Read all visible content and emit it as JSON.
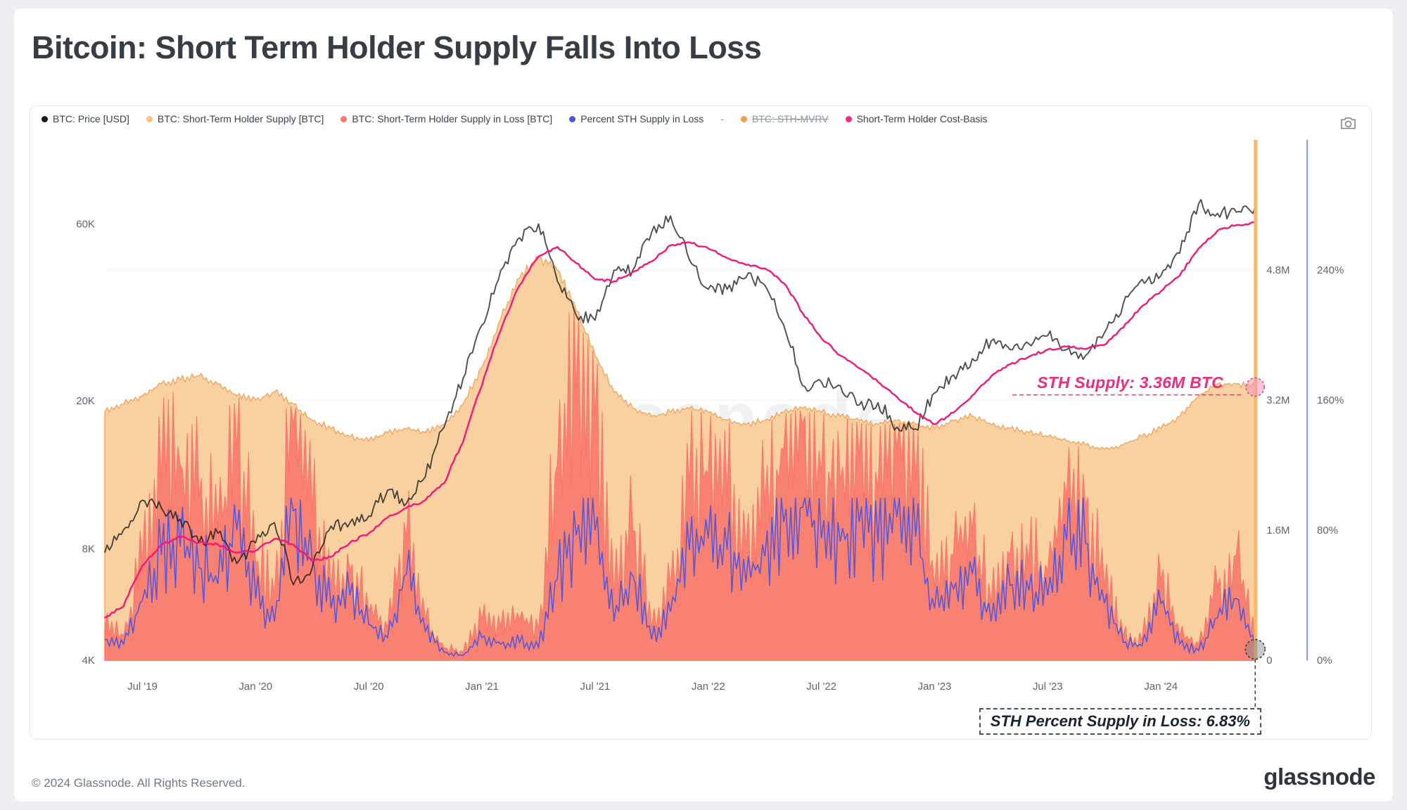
{
  "header": {
    "title": "Bitcoin: Short Term Holder Supply Falls Into Loss"
  },
  "legend": {
    "items": [
      {
        "label": "BTC: Price [USD]",
        "color": "#17191c"
      },
      {
        "label": "BTC: Short-Term Holder Supply [BTC]",
        "color": "#f8c382"
      },
      {
        "label": "BTC: Short-Term Holder Supply in Loss [BTC]",
        "color": "#f8766c"
      },
      {
        "label": "Percent STH Supply in Loss",
        "color": "#4a55e1"
      },
      {
        "label": "-",
        "color": null,
        "separator": true
      },
      {
        "label": "BTC: STH-MVRV",
        "color": "#f0a23c",
        "disabled": true
      },
      {
        "label": "Short-Term Holder Cost-Basis",
        "color": "#ee2d7f"
      }
    ]
  },
  "watermark": {
    "text": "glassnode"
  },
  "footer": {
    "copyright": "© 2024 Glassnode. All Rights Reserved.",
    "brand": "glassnode"
  },
  "chart_data": {
    "type": "area",
    "title": "Bitcoin: Short Term Holder Supply Falls Into Loss",
    "x_start": "2019-05",
    "x_end": "2024-06",
    "n_points": 62,
    "x_ticks": [
      {
        "i": 2,
        "label": "Jul '19"
      },
      {
        "i": 8,
        "label": "Jan '20"
      },
      {
        "i": 14,
        "label": "Jul '20"
      },
      {
        "i": 20,
        "label": "Jan '21"
      },
      {
        "i": 26,
        "label": "Jul '21"
      },
      {
        "i": 32,
        "label": "Jan '22"
      },
      {
        "i": 38,
        "label": "Jul '22"
      },
      {
        "i": 44,
        "label": "Jan '23"
      },
      {
        "i": 50,
        "label": "Jul '23"
      },
      {
        "i": 56,
        "label": "Jan '24"
      }
    ],
    "axes": {
      "price": {
        "side": "left",
        "scale": "log",
        "min": 4000,
        "max": 101000,
        "ticks": [
          {
            "v": 4000,
            "label": "4K"
          },
          {
            "v": 8000,
            "label": "8K"
          },
          {
            "v": 20000,
            "label": "20K"
          },
          {
            "v": 60000,
            "label": "60K"
          }
        ]
      },
      "supply": {
        "side": "right",
        "scale": "linear",
        "min": 0,
        "max": 6.4,
        "unit": "million BTC",
        "ticks": [
          {
            "v": 0,
            "label": "0"
          },
          {
            "v": 1.6,
            "label": "1.6M"
          },
          {
            "v": 3.2,
            "label": "3.2M"
          },
          {
            "v": 4.8,
            "label": "4.8M"
          }
        ]
      },
      "percent": {
        "side": "right-outer",
        "scale": "linear",
        "min": 0,
        "max": 320,
        "axis_line_color": "#6672e8",
        "ticks": [
          {
            "v": 0,
            "label": "0%"
          },
          {
            "v": 80,
            "label": "80%"
          },
          {
            "v": 160,
            "label": "160%"
          },
          {
            "v": 240,
            "label": "240%"
          }
        ]
      }
    },
    "grid": "horizontal",
    "series": [
      {
        "name": "BTC: Price [USD]",
        "axis": "price",
        "type": "line",
        "color": "#1a1c1f",
        "spikiness": 0.04,
        "values": [
          7800,
          9000,
          10800,
          10300,
          9600,
          8300,
          8800,
          7300,
          8300,
          9400,
          6400,
          7100,
          9200,
          9400,
          9800,
          11500,
          10600,
          12500,
          17000,
          23000,
          32000,
          45000,
          55000,
          60000,
          42000,
          34000,
          33000,
          45000,
          45000,
          57000,
          63000,
          48000,
          40000,
          40000,
          43000,
          41000,
          32000,
          22000,
          22500,
          22000,
          19500,
          19800,
          17000,
          16800,
          21000,
          23500,
          26000,
          29000,
          27500,
          28500,
          30000,
          27500,
          26500,
          30500,
          36500,
          42500,
          43500,
          50000,
          68000,
          64000,
          64500,
          66500
        ]
      },
      {
        "name": "BTC: Short-Term Holder Supply [BTC]",
        "axis": "supply",
        "type": "area",
        "color": "#f9d0a0",
        "stroke": "#f0a55c",
        "spikiness": 0.015,
        "values": [
          3.05,
          3.15,
          3.25,
          3.4,
          3.45,
          3.5,
          3.4,
          3.25,
          3.2,
          3.3,
          3.15,
          2.95,
          2.85,
          2.75,
          2.7,
          2.8,
          2.85,
          2.8,
          2.9,
          3.15,
          3.6,
          4.2,
          4.7,
          4.95,
          4.8,
          4.3,
          3.75,
          3.3,
          3.1,
          3.0,
          3.05,
          3.1,
          3.05,
          2.95,
          2.9,
          2.95,
          3.05,
          3.1,
          3.05,
          3.0,
          2.95,
          2.9,
          2.95,
          2.9,
          2.85,
          2.95,
          3.0,
          2.9,
          2.85,
          2.8,
          2.75,
          2.7,
          2.65,
          2.6,
          2.65,
          2.75,
          2.85,
          3.0,
          3.25,
          3.4,
          3.4,
          3.36
        ]
      },
      {
        "name": "BTC: Short-Term Holder Supply in Loss [BTC]",
        "axis": "supply",
        "type": "area",
        "color": "#f8756a",
        "spikiness": 0.55,
        "values": [
          0.4,
          0.3,
          1.2,
          2.2,
          2.4,
          2.0,
          1.6,
          2.6,
          1.2,
          0.8,
          2.9,
          1.8,
          0.9,
          1.1,
          0.6,
          0.4,
          1.5,
          0.5,
          0.15,
          0.1,
          0.5,
          0.4,
          0.5,
          0.4,
          2.4,
          3.3,
          3.0,
          0.8,
          1.6,
          0.4,
          0.9,
          2.1,
          2.3,
          2.0,
          1.4,
          1.9,
          2.6,
          2.9,
          2.3,
          2.2,
          2.5,
          2.1,
          2.6,
          2.2,
          0.9,
          1.3,
          1.6,
          0.7,
          1.3,
          1.2,
          1.1,
          2.0,
          1.9,
          0.9,
          0.3,
          0.25,
          1.0,
          0.3,
          0.2,
          0.9,
          1.3,
          0.23
        ]
      },
      {
        "name": "Percent STH Supply in Loss",
        "axis": "percent",
        "type": "line",
        "color": "#4a55e1",
        "spikiness": 0.45,
        "values": [
          13,
          10,
          37,
          65,
          70,
          57,
          47,
          80,
          38,
          24,
          92,
          61,
          32,
          40,
          22,
          14,
          53,
          18,
          5,
          3,
          14,
          10,
          11,
          8,
          50,
          77,
          80,
          24,
          52,
          13,
          30,
          68,
          75,
          68,
          48,
          64,
          85,
          94,
          75,
          73,
          85,
          72,
          88,
          76,
          32,
          44,
          53,
          24,
          46,
          43,
          40,
          74,
          72,
          35,
          11,
          9,
          35,
          10,
          6,
          26,
          38,
          6.83
        ]
      },
      {
        "name": "Short-Term Holder Cost-Basis",
        "axis": "price",
        "type": "line",
        "color": "#f2187c",
        "spikiness": 0.008,
        "values": [
          5200,
          5600,
          7200,
          8200,
          8600,
          8300,
          8200,
          7800,
          7900,
          8500,
          8200,
          7400,
          7600,
          8300,
          8800,
          9700,
          10300,
          10800,
          12000,
          15500,
          22000,
          31000,
          41000,
          49000,
          52000,
          47000,
          42500,
          42000,
          44500,
          47500,
          52500,
          53500,
          51500,
          48500,
          46500,
          45500,
          41500,
          34500,
          29500,
          26500,
          24500,
          22500,
          20500,
          18600,
          17300,
          18600,
          20700,
          23300,
          25100,
          26300,
          27500,
          28000,
          27600,
          28300,
          31500,
          36000,
          39500,
          43500,
          51500,
          57500,
          59500,
          60500
        ]
      }
    ],
    "disabled_series": [
      "BTC: STH-MVRV"
    ],
    "right_edge_spike": {
      "color": "#f6b76c"
    },
    "annotations": {
      "supply_marker": {
        "label": "STH Supply: 3.36M BTC",
        "series": "BTC: Short-Term Holder Supply [BTC]",
        "value": 3.36,
        "color": "#ee2d7f"
      },
      "pct_marker": {
        "label": "STH Percent Supply in Loss: 6.83%",
        "series": "Percent STH Supply in Loss",
        "value": 6.83,
        "color": "#182430"
      }
    }
  }
}
